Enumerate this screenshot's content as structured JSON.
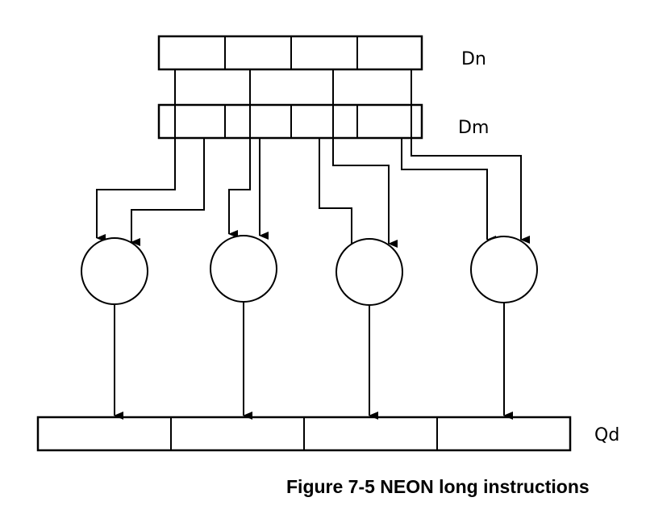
{
  "registers": {
    "dn": {
      "label": "Dn",
      "lanes": 4
    },
    "dm": {
      "label": "Dm",
      "lanes": 4
    },
    "qd": {
      "label": "Qd",
      "lanes": 4
    }
  },
  "operations": {
    "count": 4
  },
  "caption": "Figure 7-5 NEON long instructions"
}
